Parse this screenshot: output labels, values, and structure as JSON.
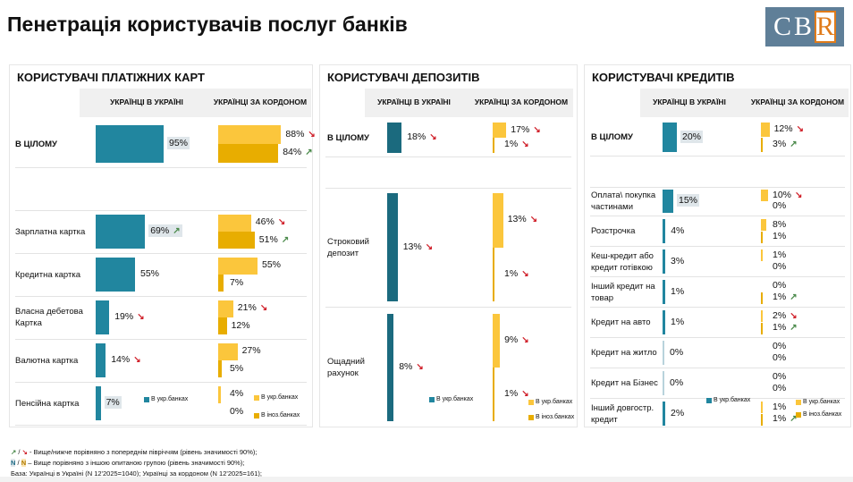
{
  "title": "Пенетрація користувачів послуг банків",
  "logo": "CBR",
  "colors": {
    "ua": "#21869f",
    "abroad_ua": "#fbc63c",
    "abroad_foreign": "#e8ad00",
    "up": "#4b8a4b",
    "down": "#d0202a",
    "sig_bg": "#dfe6ea"
  },
  "col_headers": {
    "ua": "УКРАЇНЦІ В УКРАЇНІ",
    "abroad": "УКРАЇНЦІ ЗА КОРДОНОМ"
  },
  "legend": {
    "ua_banks": "В укр.банках",
    "foreign_banks": "В іноз.банках"
  },
  "chart_data": [
    {
      "type": "bar",
      "title": "КОРИСТУВАЧІ ПЛАТІЖНИХ КАРТ",
      "unit": "%",
      "series_names": [
        "Українці в Україні (в укр.банках)",
        "Українці за кордоном (в укр.банках)",
        "Українці за кордоном (в іноз.банках)"
      ],
      "rows": [
        {
          "label": "В ЦІЛОМУ",
          "bold": true,
          "ua": {
            "v": 95,
            "sig": true
          },
          "ab1": {
            "v": 88,
            "trend": "down"
          },
          "ab2": {
            "v": 84,
            "trend": "up"
          }
        },
        {
          "label": "Зарплатна картка",
          "ua": {
            "v": 69,
            "sig": true,
            "trend": "up"
          },
          "ab1": {
            "v": 46,
            "trend": "down"
          },
          "ab2": {
            "v": 51,
            "trend": "up"
          }
        },
        {
          "label": "Кредитна картка",
          "ua": {
            "v": 55
          },
          "ab1": {
            "v": 55
          },
          "ab2": {
            "v": 7
          }
        },
        {
          "label": "Власна дебетова Картка",
          "ua": {
            "v": 19,
            "trend": "down"
          },
          "ab1": {
            "v": 21,
            "trend": "down"
          },
          "ab2": {
            "v": 12
          }
        },
        {
          "label": "Валютна картка",
          "ua": {
            "v": 14,
            "trend": "down"
          },
          "ab1": {
            "v": 27
          },
          "ab2": {
            "v": 5
          }
        },
        {
          "label": "Пенсійна картка",
          "ua": {
            "v": 7,
            "sig": true
          },
          "ab1": {
            "v": 4
          },
          "ab2": {
            "v": 0
          }
        }
      ]
    },
    {
      "type": "bar",
      "title": "КОРИСТУВАЧІ ДЕПОЗИТІВ",
      "unit": "%",
      "rows": [
        {
          "label": "В ЦІЛОМУ",
          "bold": true,
          "ua": {
            "v": 18,
            "trend": "down"
          },
          "ab1": {
            "v": 17,
            "trend": "down"
          },
          "ab2": {
            "v": 1,
            "trend": "down"
          }
        },
        {
          "label": "Строковий депозит",
          "ua": {
            "v": 13,
            "trend": "down"
          },
          "ab1": {
            "v": 13,
            "trend": "down"
          },
          "ab2": {
            "v": 1,
            "trend": "down"
          }
        },
        {
          "label": "Ощадний рахунок",
          "ua": {
            "v": 8,
            "trend": "down"
          },
          "ab1": {
            "v": 9,
            "trend": "down"
          },
          "ab2": {
            "v": 1,
            "trend": "down"
          }
        }
      ]
    },
    {
      "type": "bar",
      "title": "КОРИСТУВАЧІ КРЕДИТІВ",
      "unit": "%",
      "rows": [
        {
          "label": "В ЦІЛОМУ",
          "bold": true,
          "ua": {
            "v": 20,
            "sig": true
          },
          "ab1": {
            "v": 12,
            "trend": "down"
          },
          "ab2": {
            "v": 3,
            "trend": "up"
          }
        },
        {
          "label": "Оплата\\ покупка частинами",
          "ua": {
            "v": 15,
            "sig": true
          },
          "ab1": {
            "v": 10,
            "trend": "down"
          },
          "ab2": {
            "v": 0
          }
        },
        {
          "label": "Розстрочка",
          "ua": {
            "v": 4
          },
          "ab1": {
            "v": 8
          },
          "ab2": {
            "v": 1
          }
        },
        {
          "label": "Кеш-кредит або кредит готівкою",
          "ua": {
            "v": 3
          },
          "ab1": {
            "v": 1
          },
          "ab2": {
            "v": 0
          }
        },
        {
          "label": "Інший кредит на товар",
          "ua": {
            "v": 1
          },
          "ab1": {
            "v": 0
          },
          "ab2": {
            "v": 1,
            "trend": "up"
          }
        },
        {
          "label": "Кредит на авто",
          "ua": {
            "v": 1
          },
          "ab1": {
            "v": 2,
            "trend": "down"
          },
          "ab2": {
            "v": 1,
            "trend": "up"
          }
        },
        {
          "label": "Кредит на житло",
          "ua": {
            "v": 0
          },
          "ab1": {
            "v": 0
          },
          "ab2": {
            "v": 0
          }
        },
        {
          "label": "Кредит на Бізнес",
          "ua": {
            "v": 0
          },
          "ab1": {
            "v": 0
          },
          "ab2": {
            "v": 0
          }
        },
        {
          "label": "Інший довгостр. кредит",
          "ua": {
            "v": 2
          },
          "ab1": {
            "v": 1
          },
          "ab2": {
            "v": 1,
            "trend": "up"
          }
        }
      ]
    }
  ],
  "footnotes": {
    "trend_symbols": "↗ / ↘",
    "trend_text": " - Вище/нижче порівняно з попереднім півріччям (рівень значимості 90%);",
    "n_symbol": "N",
    "n_text": " – Вище порівняно з іншою опитаною групою (рівень значимості 90%);",
    "base": "База: Українці в Україні (N 12'2025=1040); Українці за кордоном (N 12'2025=161);"
  }
}
